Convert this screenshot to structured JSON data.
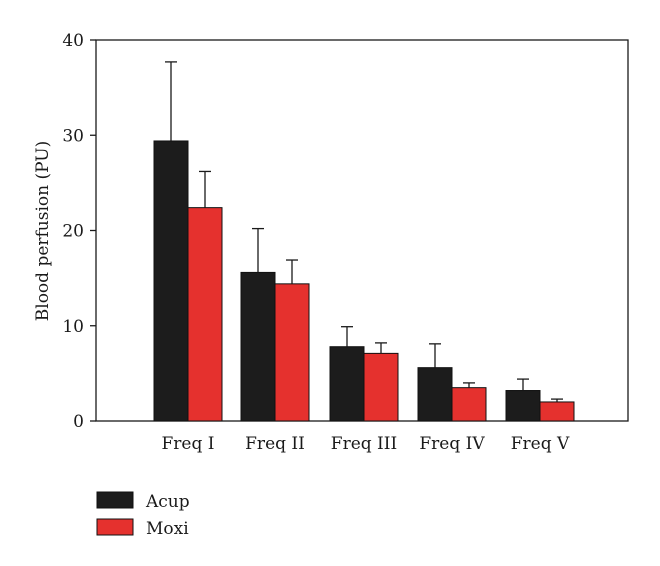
{
  "chart_data": {
    "type": "bar",
    "title": "",
    "xlabel": "",
    "ylabel": "Blood perfusion (PU)",
    "categories": [
      "Freq I",
      "Freq II",
      "Freq III",
      "Freq IV",
      "Freq V"
    ],
    "series": [
      {
        "name": "Acup",
        "color": "#1c1c1c",
        "values": [
          29.4,
          15.6,
          7.8,
          5.6,
          3.2
        ],
        "error": [
          8.3,
          4.6,
          2.1,
          2.5,
          1.2
        ]
      },
      {
        "name": "Moxi",
        "color": "#e5312e",
        "values": [
          22.4,
          14.4,
          7.1,
          3.5,
          2.0
        ],
        "error": [
          3.8,
          2.5,
          1.1,
          0.5,
          0.3
        ]
      }
    ],
    "ylim": [
      0,
      40
    ],
    "yticks": [
      0,
      10,
      20,
      30,
      40
    ],
    "grid": false,
    "legend_position": "bottom-left"
  }
}
